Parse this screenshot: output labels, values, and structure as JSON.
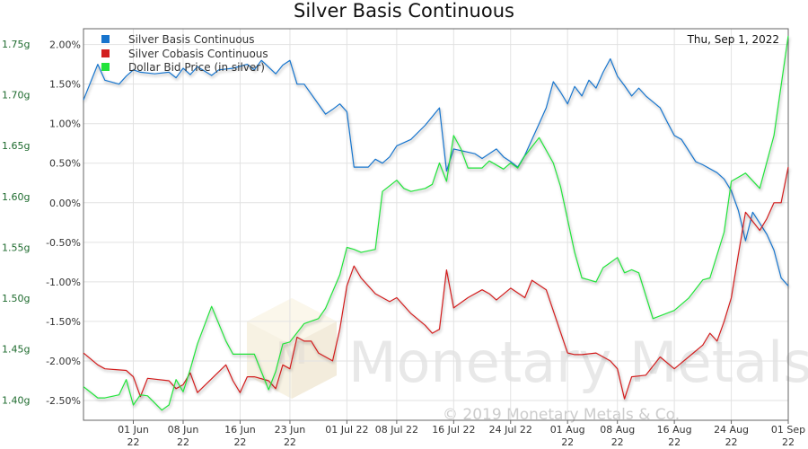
{
  "chart_data": {
    "type": "line",
    "title": "Silver Basis Continuous",
    "date_label": "Thu, Sep 1, 2022",
    "xlabel": "",
    "ylabel": "",
    "grid": true,
    "legend_position": "top-left",
    "watermark": "Monetary Metals",
    "copyright": "© 2019 Monetary Metals & Co.",
    "x_range": [
      "2022-05-25",
      "2022-09-01"
    ],
    "ylim_left": [
      -2.75,
      2.2
    ],
    "ylim_right": [
      1.38,
      1.765
    ],
    "y_left_ticks": [
      "2.00%",
      "1.50%",
      "1.00%",
      "0.50%",
      "0.00%",
      "-0.50%",
      "-1.00%",
      "-1.50%",
      "-2.00%",
      "-2.50%"
    ],
    "y_right_ticks": [
      "1.75g",
      "1.70g",
      "1.65g",
      "1.60g",
      "1.55g",
      "1.50g",
      "1.45g",
      "1.40g"
    ],
    "x_ticks": [
      {
        "date": "2022-06-01",
        "label1": "01 Jun",
        "label2": "22"
      },
      {
        "date": "2022-06-08",
        "label1": "08 Jun",
        "label2": "22"
      },
      {
        "date": "2022-06-16",
        "label1": "16 Jun",
        "label2": "22"
      },
      {
        "date": "2022-06-23",
        "label1": "23 Jun",
        "label2": "22"
      },
      {
        "date": "2022-07-01",
        "label1": "01 Jul 22",
        "label2": ""
      },
      {
        "date": "2022-07-08",
        "label1": "08 Jul 22",
        "label2": ""
      },
      {
        "date": "2022-07-16",
        "label1": "16 Jul 22",
        "label2": ""
      },
      {
        "date": "2022-07-24",
        "label1": "24 Jul 22",
        "label2": ""
      },
      {
        "date": "2022-08-01",
        "label1": "01 Aug",
        "label2": "22"
      },
      {
        "date": "2022-08-08",
        "label1": "08 Aug",
        "label2": "22"
      },
      {
        "date": "2022-08-16",
        "label1": "16 Aug",
        "label2": "22"
      },
      {
        "date": "2022-08-24",
        "label1": "24 Aug",
        "label2": "22"
      },
      {
        "date": "2022-09-01",
        "label1": "01 Sep",
        "label2": "22"
      }
    ],
    "series": [
      {
        "name": "Silver Basis Continuous",
        "color": "#1874cd",
        "axis": "left",
        "x": [
          "2022-05-25",
          "2022-05-27",
          "2022-05-28",
          "2022-05-30",
          "2022-05-31",
          "2022-06-01",
          "2022-06-02",
          "2022-06-04",
          "2022-06-06",
          "2022-06-07",
          "2022-06-08",
          "2022-06-09",
          "2022-06-10",
          "2022-06-12",
          "2022-06-13",
          "2022-06-15",
          "2022-06-17",
          "2022-06-18",
          "2022-06-19",
          "2022-06-21",
          "2022-06-22",
          "2022-06-23",
          "2022-06-24",
          "2022-06-25",
          "2022-06-28",
          "2022-06-29",
          "2022-06-30",
          "2022-07-01",
          "2022-07-02",
          "2022-07-04",
          "2022-07-05",
          "2022-07-06",
          "2022-07-07",
          "2022-07-08",
          "2022-07-10",
          "2022-07-12",
          "2022-07-14",
          "2022-07-15",
          "2022-07-16",
          "2022-07-19",
          "2022-07-20",
          "2022-07-22",
          "2022-07-23",
          "2022-07-24",
          "2022-07-25",
          "2022-07-26",
          "2022-07-28",
          "2022-07-29",
          "2022-07-30",
          "2022-07-31",
          "2022-08-01",
          "2022-08-02",
          "2022-08-03",
          "2022-08-04",
          "2022-08-05",
          "2022-08-06",
          "2022-08-07",
          "2022-08-08",
          "2022-08-09",
          "2022-08-10",
          "2022-08-11",
          "2022-08-12",
          "2022-08-14",
          "2022-08-15",
          "2022-08-16",
          "2022-08-17",
          "2022-08-19",
          "2022-08-20",
          "2022-08-22",
          "2022-08-23",
          "2022-08-24",
          "2022-08-25",
          "2022-08-26",
          "2022-08-27",
          "2022-08-29",
          "2022-08-30",
          "2022-08-31",
          "2022-09-01"
        ],
        "y": [
          1.3,
          1.75,
          1.55,
          1.5,
          1.6,
          1.68,
          1.65,
          1.63,
          1.65,
          1.58,
          1.7,
          1.62,
          1.72,
          1.61,
          1.68,
          1.7,
          1.75,
          1.68,
          1.8,
          1.63,
          1.74,
          1.8,
          1.5,
          1.5,
          1.12,
          1.18,
          1.25,
          1.15,
          0.45,
          0.45,
          0.55,
          0.5,
          0.58,
          0.72,
          0.8,
          0.98,
          1.2,
          0.4,
          0.68,
          0.62,
          0.56,
          0.68,
          0.58,
          0.52,
          0.45,
          0.6,
          1.0,
          1.2,
          1.53,
          1.4,
          1.25,
          1.47,
          1.35,
          1.55,
          1.45,
          1.65,
          1.82,
          1.6,
          1.48,
          1.35,
          1.45,
          1.35,
          1.2,
          1.02,
          0.85,
          0.8,
          0.52,
          0.48,
          0.38,
          0.3,
          0.15,
          -0.1,
          -0.48,
          -0.12,
          -0.4,
          -0.6,
          -0.95,
          -1.05
        ]
      },
      {
        "name": "Silver Cobasis Continuous",
        "color": "#d21f1f",
        "axis": "left",
        "x": [
          "2022-05-25",
          "2022-05-27",
          "2022-05-28",
          "2022-05-31",
          "2022-06-01",
          "2022-06-02",
          "2022-06-03",
          "2022-06-06",
          "2022-06-07",
          "2022-06-08",
          "2022-06-09",
          "2022-06-10",
          "2022-06-14",
          "2022-06-15",
          "2022-06-16",
          "2022-06-17",
          "2022-06-18",
          "2022-06-20",
          "2022-06-21",
          "2022-06-22",
          "2022-06-23",
          "2022-06-24",
          "2022-06-25",
          "2022-06-26",
          "2022-06-27",
          "2022-06-29",
          "2022-06-30",
          "2022-07-01",
          "2022-07-02",
          "2022-07-03",
          "2022-07-05",
          "2022-07-07",
          "2022-07-08",
          "2022-07-10",
          "2022-07-12",
          "2022-07-13",
          "2022-07-14",
          "2022-07-15",
          "2022-07-16",
          "2022-07-18",
          "2022-07-20",
          "2022-07-21",
          "2022-07-22",
          "2022-07-24",
          "2022-07-26",
          "2022-07-27",
          "2022-07-29",
          "2022-08-01",
          "2022-08-02",
          "2022-08-03",
          "2022-08-05",
          "2022-08-07",
          "2022-08-08",
          "2022-08-09",
          "2022-08-10",
          "2022-08-12",
          "2022-08-14",
          "2022-08-16",
          "2022-08-18",
          "2022-08-20",
          "2022-08-21",
          "2022-08-22",
          "2022-08-23",
          "2022-08-24",
          "2022-08-25",
          "2022-08-26",
          "2022-08-28",
          "2022-08-29",
          "2022-08-30",
          "2022-08-31",
          "2022-09-01"
        ],
        "y": [
          -1.9,
          -2.05,
          -2.1,
          -2.12,
          -2.2,
          -2.45,
          -2.22,
          -2.25,
          -2.35,
          -2.3,
          -2.15,
          -2.4,
          -2.05,
          -2.25,
          -2.4,
          -2.2,
          -2.2,
          -2.25,
          -2.35,
          -2.05,
          -2.1,
          -1.7,
          -1.75,
          -1.75,
          -1.9,
          -2.0,
          -1.6,
          -1.05,
          -0.8,
          -0.95,
          -1.15,
          -1.25,
          -1.2,
          -1.4,
          -1.55,
          -1.65,
          -1.6,
          -0.85,
          -1.33,
          -1.2,
          -1.1,
          -1.15,
          -1.23,
          -1.08,
          -1.2,
          -0.98,
          -1.1,
          -1.9,
          -1.92,
          -1.92,
          -1.9,
          -2.0,
          -2.1,
          -2.48,
          -2.2,
          -2.18,
          -1.95,
          -2.1,
          -1.95,
          -1.8,
          -1.65,
          -1.75,
          -1.5,
          -1.2,
          -0.65,
          -0.12,
          -0.35,
          -0.2,
          0.0,
          0.0,
          0.45
        ]
      },
      {
        "name": "Dollar Bid Price (in silver)",
        "color": "#22e33a",
        "axis": "right",
        "x": [
          "2022-05-25",
          "2022-05-27",
          "2022-05-28",
          "2022-05-30",
          "2022-05-31",
          "2022-06-01",
          "2022-06-02",
          "2022-06-03",
          "2022-06-05",
          "2022-06-06",
          "2022-06-07",
          "2022-06-08",
          "2022-06-09",
          "2022-06-10",
          "2022-06-12",
          "2022-06-14",
          "2022-06-15",
          "2022-06-16",
          "2022-06-17",
          "2022-06-18",
          "2022-06-20",
          "2022-06-21",
          "2022-06-22",
          "2022-06-23",
          "2022-06-25",
          "2022-06-27",
          "2022-06-28",
          "2022-06-30",
          "2022-07-01",
          "2022-07-02",
          "2022-07-03",
          "2022-07-05",
          "2022-07-06",
          "2022-07-08",
          "2022-07-09",
          "2022-07-10",
          "2022-07-12",
          "2022-07-13",
          "2022-07-14",
          "2022-07-15",
          "2022-07-16",
          "2022-07-17",
          "2022-07-18",
          "2022-07-20",
          "2022-07-21",
          "2022-07-23",
          "2022-07-24",
          "2022-07-25",
          "2022-07-26",
          "2022-07-28",
          "2022-07-30",
          "2022-07-31",
          "2022-08-02",
          "2022-08-03",
          "2022-08-04",
          "2022-08-05",
          "2022-08-06",
          "2022-08-07",
          "2022-08-08",
          "2022-08-09",
          "2022-08-10",
          "2022-08-11",
          "2022-08-13",
          "2022-08-16",
          "2022-08-18",
          "2022-08-20",
          "2022-08-21",
          "2022-08-23",
          "2022-08-24",
          "2022-08-26",
          "2022-08-28",
          "2022-08-30",
          "2022-09-01"
        ],
        "y": [
          1.413,
          1.402,
          1.402,
          1.405,
          1.42,
          1.395,
          1.405,
          1.404,
          1.39,
          1.395,
          1.42,
          1.408,
          1.43,
          1.455,
          1.492,
          1.458,
          1.445,
          1.445,
          1.445,
          1.445,
          1.41,
          1.428,
          1.455,
          1.457,
          1.475,
          1.48,
          1.49,
          1.523,
          1.55,
          1.548,
          1.545,
          1.548,
          1.605,
          1.616,
          1.608,
          1.605,
          1.608,
          1.612,
          1.633,
          1.615,
          1.66,
          1.647,
          1.628,
          1.628,
          1.635,
          1.627,
          1.633,
          1.628,
          1.64,
          1.658,
          1.633,
          1.61,
          1.545,
          1.52,
          1.518,
          1.516,
          1.53,
          1.535,
          1.54,
          1.525,
          1.528,
          1.525,
          1.48,
          1.488,
          1.5,
          1.518,
          1.52,
          1.565,
          1.615,
          1.623,
          1.608,
          1.66,
          1.758
        ]
      }
    ]
  }
}
